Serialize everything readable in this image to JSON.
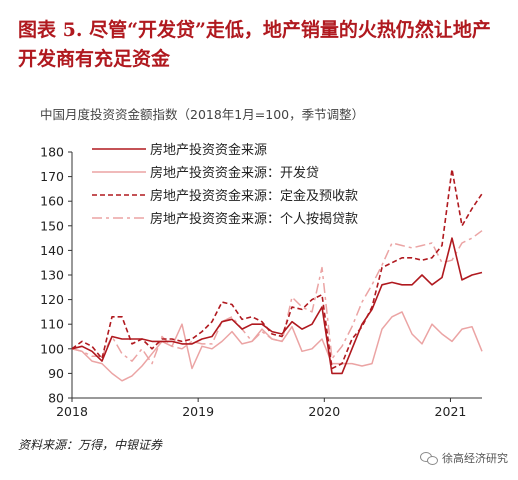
{
  "figure": {
    "title": "图表 5. 尽管“开发贷”走低，地产销量的火热仍然让地产开发商有充足资金",
    "source": "资料来源：万得，中银证券",
    "watermark": "徐高经济研究",
    "watermark_icon": "wechat-icon"
  },
  "chart_data": {
    "type": "line",
    "title": "",
    "subtitle": "中国月度投资资金额指数（2018年1月=100，季节调整）",
    "ylim": [
      80,
      180
    ],
    "yticks": [
      80,
      90,
      100,
      110,
      120,
      130,
      140,
      150,
      160,
      170,
      180
    ],
    "xlim": [
      2018,
      2021.25
    ],
    "xticks": [
      2018,
      2019,
      2020,
      2021
    ],
    "xticklabels": [
      "2018",
      "2019",
      "2020",
      "2021"
    ],
    "grid": false,
    "legend_position": "top-left",
    "series": [
      {
        "name": "房地产投资资金来源",
        "color": "#b0191f",
        "style": "solid",
        "values": [
          100,
          101,
          99,
          95,
          105,
          104,
          104,
          104,
          103,
          103,
          103,
          102,
          102,
          104,
          105,
          111,
          112,
          108,
          110,
          110,
          107,
          106,
          111,
          108,
          110,
          117,
          90,
          90,
          100,
          110,
          116,
          126,
          127,
          126,
          126,
          130,
          126,
          129,
          145,
          128,
          130,
          131
        ]
      },
      {
        "name": "房地产投资资金来源：开发贷",
        "color": "#eba4a4",
        "style": "solid",
        "values": [
          100,
          99,
          95,
          94,
          90,
          87,
          89,
          93,
          98,
          103,
          101,
          110,
          92,
          101,
          100,
          103,
          107,
          102,
          103,
          108,
          104,
          103,
          109,
          99,
          100,
          104,
          94,
          94,
          94,
          93,
          94,
          108,
          113,
          115,
          106,
          102,
          110,
          106,
          103,
          108,
          109,
          99
        ]
      },
      {
        "name": "房地产投资资金来源：定金及预收款",
        "color": "#b0191f",
        "style": "dashed",
        "values": [
          100,
          103,
          101,
          96,
          113,
          113,
          102,
          104,
          100,
          104,
          104,
          103,
          104,
          107,
          111,
          119,
          118,
          112,
          113,
          111,
          106,
          105,
          117,
          116,
          120,
          122,
          92,
          94,
          104,
          109,
          117,
          133,
          135,
          137,
          137,
          136,
          137,
          142,
          173,
          150,
          157,
          163
        ]
      },
      {
        "name": "房地产投资资金来源：个人按揭贷款",
        "color": "#eba4a4",
        "style": "dashdot",
        "values": [
          100,
          99,
          97,
          97,
          105,
          98,
          95,
          100,
          94,
          105,
          101,
          100,
          103,
          102,
          102,
          111,
          113,
          108,
          103,
          107,
          104,
          103,
          121,
          117,
          115,
          133,
          96,
          101,
          109,
          119,
          126,
          134,
          143,
          142,
          141,
          142,
          143,
          135,
          136,
          143,
          145,
          148
        ]
      }
    ]
  }
}
